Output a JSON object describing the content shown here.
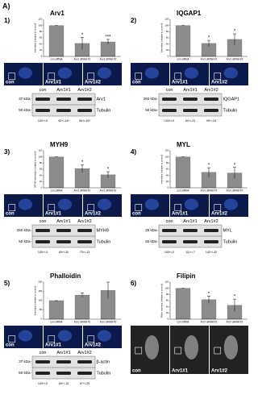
{
  "figure_label": "A)",
  "chart_data": [
    {
      "type": "bar",
      "title": "Arv1",
      "y_label": "Intensities (relative to control)",
      "categories": [
        "con siRNA",
        "Arv1 siRNA #1",
        "Arv1 siRNA #2"
      ],
      "values": [
        100,
        42,
        47
      ],
      "errors": [
        0,
        20,
        8
      ],
      "annotations": [
        null,
        "*",
        "***"
      ],
      "color": "#8c8c8c",
      "ylim": [
        0,
        120
      ],
      "yticks": [
        0,
        20,
        40,
        60,
        80,
        100,
        120
      ]
    },
    {
      "type": "bar",
      "title": "IQGAP1",
      "y_label": "Intensities (relative to control)",
      "categories": [
        "con siRNA",
        "Arv1 siRNA #1",
        "Arv1 siRNA #2"
      ],
      "values": [
        100,
        42,
        55
      ],
      "errors": [
        0,
        10,
        18
      ],
      "annotations": [
        null,
        "*",
        "*"
      ],
      "color": "#8c8c8c",
      "ylim": [
        0,
        120
      ],
      "yticks": [
        0,
        20,
        40,
        60,
        80,
        100,
        120
      ]
    },
    {
      "type": "bar",
      "title": "MYH9",
      "y_label": "MYH9 intensities (relative to control)",
      "categories": [
        "con siRNA",
        "Arv1 siRNA #1",
        "Arv1 siRNA #2"
      ],
      "values": [
        100,
        62,
        42
      ],
      "errors": [
        0,
        12,
        10
      ],
      "annotations": [
        null,
        "*",
        "*"
      ],
      "color": "#8c8c8c",
      "ylim": [
        0,
        120
      ],
      "yticks": [
        0,
        20,
        40,
        60,
        80,
        100,
        120
      ]
    },
    {
      "type": "bar",
      "title": "MYL",
      "y_label": "Intensities (relative to control)",
      "categories": [
        "con siRNA",
        "Arv1 siRNA #1",
        "Arv1 siRNA #2"
      ],
      "values": [
        100,
        50,
        48
      ],
      "errors": [
        0,
        15,
        18
      ],
      "annotations": [
        null,
        "*",
        "*"
      ],
      "color": "#8c8c8c",
      "ylim": [
        0,
        120
      ],
      "yticks": [
        0,
        20,
        40,
        60,
        80,
        100,
        120
      ]
    },
    {
      "type": "bar",
      "title": "Phalloidin",
      "y_label": "Intensities (relative to control)",
      "categories": [
        "con siRNA",
        "Arv1 siRNA #1",
        "Arv1 siRNA #2"
      ],
      "values": [
        100,
        130,
        155
      ],
      "errors": [
        0,
        12,
        45
      ],
      "annotations": [
        null,
        null,
        null
      ],
      "color": "#8c8c8c",
      "ylim": [
        0,
        200
      ],
      "yticks": [
        0,
        50,
        100,
        150,
        200
      ]
    },
    {
      "type": "bar",
      "title": "Filipin",
      "y_label": "Filipin intensity (relative to control)",
      "categories": [
        "con siRNA",
        "Arv1 siRNA #1",
        "Arv1 siRNA #2"
      ],
      "values": [
        100,
        63,
        45
      ],
      "errors": [
        0,
        12,
        20
      ],
      "annotations": [
        null,
        "*",
        "*"
      ],
      "color": "#8c8c8c",
      "ylim": [
        0,
        120
      ],
      "yticks": [
        0,
        20,
        40,
        60,
        80,
        100,
        120
      ]
    }
  ],
  "panels": [
    {
      "label": "1)",
      "images": [
        "con",
        "Arv1#1",
        "Arv1#2"
      ],
      "blot": {
        "lanes": [
          "con",
          "Arv1#1",
          "Arv1#2"
        ],
        "markers": [
          "37 kDa-",
          "50 kDa-"
        ],
        "bands": [
          "Arv1",
          "Tubulin"
        ],
        "quant": [
          "100+/-0",
          "43+/-16*",
          "56+/-16*"
        ]
      }
    },
    {
      "label": "2)",
      "images": [
        "con",
        "Arv1#1",
        "Arv1#2"
      ],
      "blot": {
        "lanes": [
          "con",
          "Arv1#1",
          "Arv1#2"
        ],
        "markers": [
          "250 kDa-",
          "50 kDa-"
        ],
        "bands": [
          "IQGAP1",
          "Tubulin"
        ],
        "quant": [
          "100+/-0",
          "60+/-33",
          "99+/-24"
        ]
      }
    },
    {
      "label": "3)",
      "images": [
        "con",
        "Arv1#1",
        "Arv1#2"
      ],
      "blot": {
        "lanes": [
          "con",
          "Arv1#1",
          "Arv1#2"
        ],
        "markers": [
          "250 kDa-",
          "50 kDa-"
        ],
        "bands": [
          "MYH9",
          "Tubulin"
        ],
        "quant": [
          "100+/-0",
          "69+/-30",
          "73+/-13"
        ]
      }
    },
    {
      "label": "4)",
      "images": [
        "con",
        "Arv1#1",
        "Arv1#2"
      ],
      "blot": {
        "lanes": [
          "con",
          "Arv1#1",
          "Arv1#2"
        ],
        "markers": [
          "25 kDa-",
          "50 kDa-"
        ],
        "bands": [
          "MYL",
          "Tubulin"
        ],
        "quant": [
          "100+/-0",
          "111+/-7",
          "142+/-42"
        ]
      }
    },
    {
      "label": "5)",
      "images": [
        "con",
        "Arv1#1",
        "Arv1#2"
      ],
      "blot": {
        "lanes": [
          "con",
          "Arv1#1",
          "Arv1#2"
        ],
        "markers": [
          "37 kDa-",
          "50 kDa-"
        ],
        "bands": [
          "β-actin",
          "Tubulin"
        ],
        "quant": [
          "100+/-0",
          "80+/-15",
          "67+/-29"
        ]
      }
    },
    {
      "label": "6)",
      "images": [
        "con",
        "Arv1#1",
        "Arv1#2"
      ]
    }
  ]
}
